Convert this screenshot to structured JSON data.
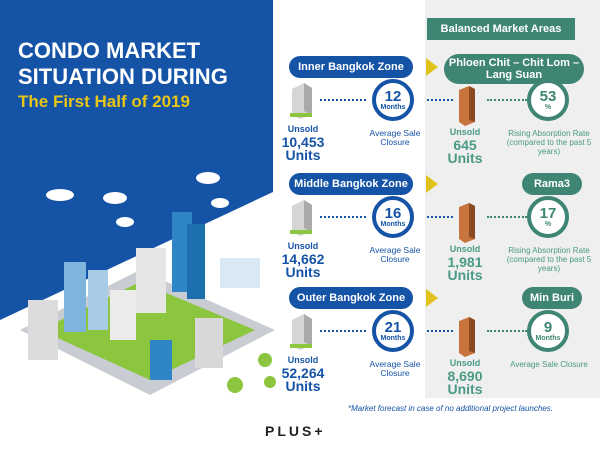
{
  "title_line1": "CONDO MARKET",
  "title_line2": "SITUATION DURING",
  "subtitle": "The First Half of 2019",
  "balanced_header": "Balanced Market Areas",
  "zones": [
    {
      "name": "Inner Bangkok Zone",
      "unsold_label": "Unsold",
      "unsold": "10,453",
      "units": "Units",
      "months": "12",
      "months_label": "Months",
      "closure": "Average Sale Closure",
      "area": "Phloen Chit – Chit Lom – Lang Suan",
      "area_unsold": "645",
      "area_value": "53",
      "area_value_unit": "%",
      "area_caption": "Rising Absorption Rate (compared to the past 5 years)"
    },
    {
      "name": "Middle Bangkok Zone",
      "unsold_label": "Unsold",
      "unsold": "14,662",
      "units": "Units",
      "months": "16",
      "months_label": "Months",
      "closure": "Average Sale Closure",
      "area": "Rama3",
      "area_unsold": "1,981",
      "area_value": "17",
      "area_value_unit": "%",
      "area_caption": "Rising Absorption Rate (compared to the past 5 years)"
    },
    {
      "name": "Outer Bangkok Zone",
      "unsold_label": "Unsold",
      "unsold": "52,264",
      "units": "Units",
      "months": "21",
      "months_label": "Months",
      "closure": "Average Sale Closure",
      "area": "Min Buri",
      "area_unsold": "8,690",
      "area_value": "9",
      "area_value_unit": "Months",
      "area_caption": "Average Sale Closure"
    }
  ],
  "footnote": "*Market forecast in case of no additional project launches.",
  "logo": "PLUS+",
  "colors": {
    "blue": "#1553a6",
    "green": "#3f8574",
    "yellow": "#e0c21a",
    "gray": "#f0f0f0"
  }
}
